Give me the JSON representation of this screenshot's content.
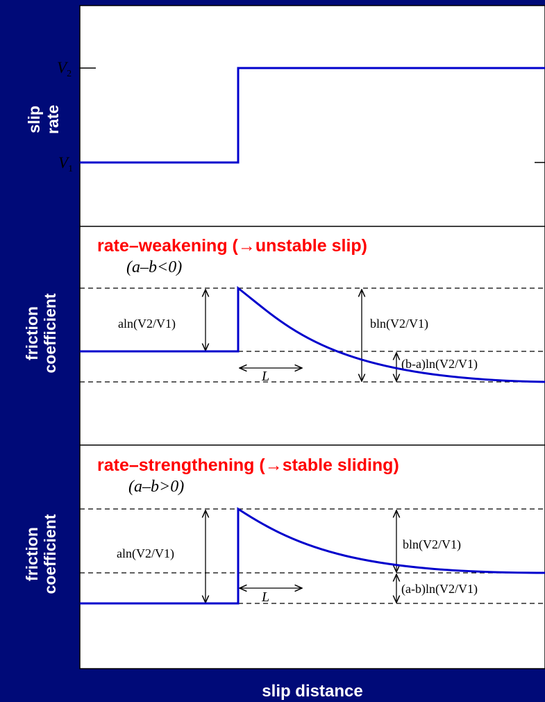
{
  "colors": {
    "background": "#000A78",
    "panel": "#FFFFFF",
    "curve": "#0000CC",
    "heading": "#FF0000",
    "ink": "#000000"
  },
  "top_panel": {
    "ylabel_line1": "slip",
    "ylabel_line2": "rate",
    "v1_label": "V",
    "v1_sub": "1",
    "v2_label": "V",
    "v2_sub": "2"
  },
  "weakening_panel": {
    "title": "rate–weakening  (→unstable slip)",
    "condition": "(a–b<0)",
    "ylabel_line1": "friction",
    "ylabel_line2": "coefficient",
    "direct_effect": "aln(V2/V1)",
    "evolution_effect": "bln(V2/V1)",
    "net_change": "(b-a)ln(V2/V1)",
    "length_label": "L"
  },
  "strengthening_panel": {
    "title": "rate–strengthening  (→stable sliding)",
    "condition": "(a–b>0)",
    "ylabel_line1": "friction",
    "ylabel_line2": "coefficient",
    "direct_effect": "aln(V2/V1)",
    "evolution_effect": "bln(V2/V1)",
    "net_change": "(a-b)ln(V2/V1)",
    "length_label": "L"
  },
  "xlabel": "slip distance"
}
